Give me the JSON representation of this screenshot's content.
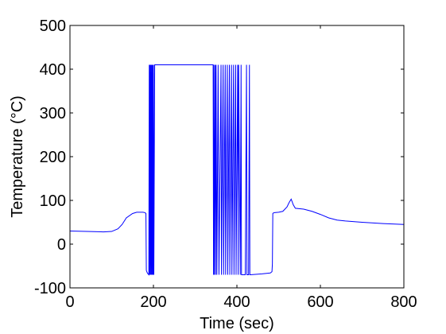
{
  "chart_data": {
    "type": "line",
    "title": "",
    "xlabel": "Time (sec)",
    "ylabel": "Temperature (°C)",
    "xlim": [
      0,
      800
    ],
    "ylim": [
      -100,
      500
    ],
    "xticks": [
      0,
      200,
      400,
      600,
      800
    ],
    "yticks": [
      -100,
      0,
      100,
      200,
      300,
      400,
      500
    ],
    "grid": false,
    "legend": "none",
    "series": [
      {
        "color": "#0000ff",
        "x": [
          0,
          40,
          80,
          100,
          115,
          125,
          135,
          150,
          160,
          175,
          180,
          182,
          183,
          185,
          187,
          189,
          190,
          191,
          192,
          193,
          194,
          195,
          196,
          197,
          198,
          199,
          200,
          201,
          203,
          205,
          250,
          300,
          343,
          344,
          345,
          346,
          348,
          349,
          350,
          352,
          355,
          357,
          362,
          363,
          367,
          368,
          372,
          373,
          377,
          378,
          382,
          383,
          387,
          388,
          392,
          393,
          397,
          398,
          402,
          403,
          404,
          408,
          410,
          411,
          412,
          420,
          423,
          424,
          428,
          430,
          431,
          432,
          460,
          480,
          484,
          485,
          486,
          487,
          490,
          500,
          510,
          520,
          525,
          530,
          535,
          540,
          560,
          580,
          600,
          620,
          640,
          660,
          700,
          750,
          800
        ],
        "y": [
          30,
          29,
          28,
          29,
          35,
          45,
          60,
          70,
          73,
          73,
          72,
          70,
          -60,
          -65,
          -68,
          -70,
          410,
          -70,
          410,
          -70,
          410,
          -70,
          410,
          -70,
          410,
          -70,
          410,
          -70,
          410,
          410,
          410,
          410,
          410,
          -70,
          410,
          -70,
          410,
          -70,
          410,
          -70,
          410,
          -70,
          410,
          -70,
          410,
          -70,
          410,
          -70,
          410,
          -70,
          410,
          -70,
          410,
          -70,
          410,
          -70,
          410,
          -70,
          410,
          -70,
          410,
          -70,
          410,
          -70,
          -70,
          -70,
          410,
          -70,
          -70,
          410,
          -70,
          -70,
          -68,
          -66,
          -63,
          -45,
          70,
          71,
          72,
          73,
          75,
          85,
          95,
          103,
          90,
          82,
          80,
          75,
          68,
          60,
          55,
          53,
          50,
          47,
          45
        ]
      }
    ]
  }
}
